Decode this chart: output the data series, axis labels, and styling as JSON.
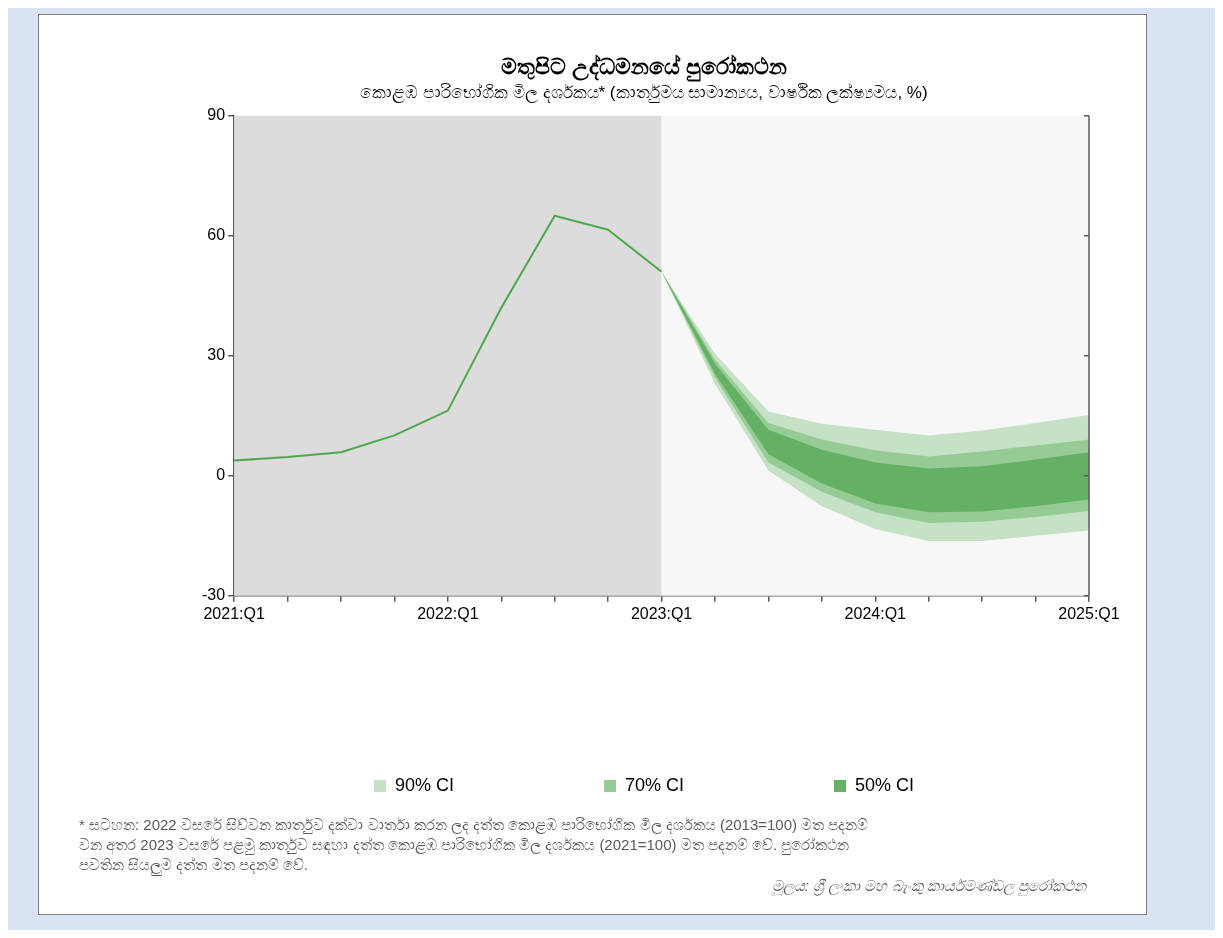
{
  "chart_data": {
    "type": "line",
    "title": "මතුපිට උද්ධමනයේ පුරෝකථන",
    "subtitle": "කොළඹ පාරිභෝගික මිල දර්ශකය* (කාර්තුමය සාමාන්‍යය, වාර්ෂික ලක්ෂ්‍යමය, %)",
    "categories": [
      "2021:Q1",
      null,
      null,
      null,
      "2022:Q1",
      null,
      null,
      null,
      "2023:Q1",
      null,
      null,
      null,
      "2024:Q1",
      null,
      null,
      null,
      "2025:Q1"
    ],
    "series": [
      {
        "color": "#4ea84e",
        "values": [
          3.8,
          4.7,
          5.9,
          10.1,
          16.3,
          42,
          65.0,
          61.5,
          51.0,
          null,
          null,
          null,
          null,
          null,
          null,
          null,
          null
        ]
      },
      {
        "type": "area",
        "name": "90% CI",
        "color": "#c6e2c6",
        "values": [
          null,
          null,
          null,
          null,
          null,
          null,
          null,
          null,
          null,
          null,
          null,
          null,
          null,
          null,
          null,
          null,
          null
        ],
        "lower": [
          null,
          null,
          null,
          null,
          null,
          null,
          null,
          null,
          51.0,
          23,
          1.3,
          -7.6,
          -13.3,
          -16.3,
          -16.3,
          -15.0,
          -13.7
        ],
        "upper": [
          null,
          null,
          null,
          null,
          null,
          null,
          null,
          null,
          51.0,
          30.5,
          16.1,
          13.0,
          11.5,
          10.1,
          11.3,
          13.2,
          15.2
        ]
      },
      {
        "type": "area",
        "name": "70% CI",
        "color": "#96cb96",
        "values": [
          null,
          null,
          null,
          null,
          null,
          null,
          null,
          null,
          null,
          null,
          null,
          null,
          null,
          null,
          null,
          null,
          null
        ],
        "lower": [
          null,
          null,
          null,
          null,
          null,
          null,
          null,
          null,
          51.0,
          24.5,
          3.3,
          -4.0,
          -9.1,
          -11.8,
          -11.5,
          -10.3,
          -8.8
        ],
        "upper": [
          null,
          null,
          null,
          null,
          null,
          null,
          null,
          null,
          51.0,
          29,
          13.2,
          9.1,
          6.4,
          4.8,
          6.1,
          7.6,
          9.1
        ]
      },
      {
        "type": "area",
        "name": "50% CI",
        "color": "#64b064",
        "values": [
          null,
          null,
          null,
          null,
          null,
          null,
          null,
          null,
          null,
          null,
          null,
          null,
          null,
          null,
          null,
          null,
          null
        ],
        "lower": [
          null,
          null,
          null,
          null,
          null,
          null,
          null,
          null,
          51.0,
          25.5,
          5.4,
          -1.9,
          -6.9,
          -9.1,
          -8.9,
          -7.6,
          -5.9
        ],
        "upper": [
          null,
          null,
          null,
          null,
          null,
          null,
          null,
          null,
          51.0,
          28,
          11.5,
          6.5,
          3.3,
          1.8,
          2.4,
          4.1,
          5.9
        ]
      }
    ],
    "ylim": [
      -30,
      90
    ],
    "yticks": [
      -30,
      0,
      30,
      60,
      90
    ],
    "grid": false,
    "legend": "bottom",
    "marker": "none",
    "line_style": "solid",
    "bands": [
      {
        "axis": "x",
        "from": "2021:Q1",
        "to": "2023:Q1",
        "color": "#dcdcdc"
      },
      {
        "axis": "x",
        "from": "2023:Q1",
        "to": "2025:Q1",
        "color": "#f7f7f7"
      }
    ],
    "annotations": [
      "* සටහන: 2022 වසරේ සිව්වන කාර්තුව දක්වා වාර්තා කරන ලද දත්ත කොළඹ පාරිභෝගික මිල දර්ශකය (2013=100) මත පදනම් වන අතර 2023 වසරේ පළමු කාර්තුව සඳහා දත්ත කොළඹ පාරිභෝගික මිල දර්ශකය (2021=100) මත පදනම් වේ. පුරෝකථන පවතින සියලුම දත්ත මත පදනම් වේ.",
      "මූලය: ශ්‍රී ලංකා මහ බැංකු කාර්යමණ්ඩල පුරෝකථන"
    ]
  }
}
